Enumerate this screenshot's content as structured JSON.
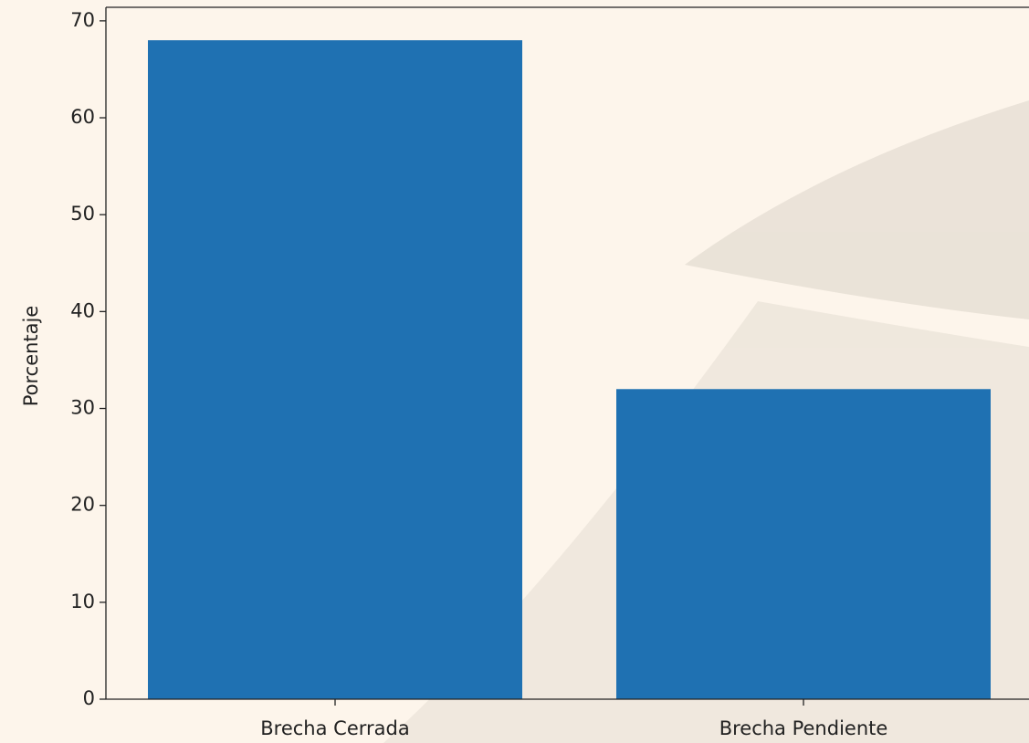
{
  "chart_data": {
    "type": "bar",
    "y_label": "Porcentaje",
    "categories": [
      "Brecha Cerrada",
      "Brecha Pendiente"
    ],
    "values": [
      68,
      32
    ],
    "color": "#1f71b2",
    "ylim": [
      0,
      71.4
    ],
    "yticks": [
      0,
      10,
      20,
      30,
      40,
      50,
      60,
      70
    ]
  }
}
